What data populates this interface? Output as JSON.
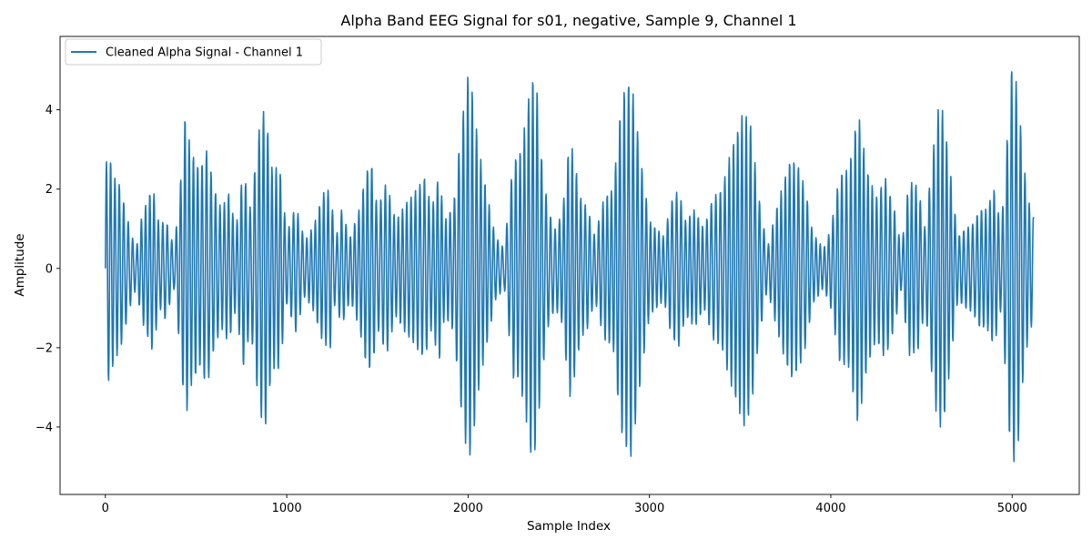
{
  "chart_data": {
    "type": "line",
    "title": "Alpha Band EEG Signal for s01, negative, Sample 9, Channel 1",
    "xlabel": "Sample Index",
    "ylabel": "Amplitude",
    "xlim": [
      -250,
      5370
    ],
    "ylim": [
      -5.7,
      5.85
    ],
    "xticks": [
      0,
      1000,
      2000,
      3000,
      4000,
      5000
    ],
    "xtick_labels": [
      "0",
      "1000",
      "2000",
      "3000",
      "4000",
      "5000"
    ],
    "yticks": [
      -4,
      -2,
      0,
      2,
      4
    ],
    "ytick_labels": [
      "−4",
      "−2",
      "0",
      "2",
      "4"
    ],
    "grid": false,
    "legend_position": "top-left",
    "series": [
      {
        "name": "Cleaned Alpha Signal - Channel 1",
        "color": "#1f77b4",
        "n_samples": 5120,
        "carrier_period_samples": 24,
        "amplitude_envelope": {
          "x": [
            0,
            20,
            50,
            80,
            110,
            140,
            170,
            200,
            260,
            300,
            330,
            380,
            420,
            440,
            470,
            520,
            560,
            600,
            640,
            680,
            720,
            760,
            800,
            850,
            880,
            920,
            960,
            1000,
            1050,
            1100,
            1150,
            1200,
            1240,
            1270,
            1300,
            1350,
            1400,
            1440,
            1470,
            1500,
            1550,
            1600,
            1650,
            1700,
            1760,
            1800,
            1840,
            1870,
            1920,
            1960,
            2000,
            2020,
            2060,
            2100,
            2150,
            2200,
            2250,
            2280,
            2320,
            2350,
            2380,
            2400,
            2440,
            2480,
            2520,
            2560,
            2580,
            2620,
            2660,
            2700,
            2750,
            2800,
            2840,
            2860,
            2900,
            2920,
            2960,
            3000,
            3040,
            3080,
            3120,
            3160,
            3200,
            3250,
            3300,
            3350,
            3400,
            3440,
            3480,
            3520,
            3560,
            3600,
            3650,
            3700,
            3740,
            3780,
            3820,
            3860,
            3900,
            3960,
            4000,
            4050,
            4100,
            4150,
            4200,
            4250,
            4300,
            4350,
            4390,
            4430,
            4480,
            4520,
            4560,
            4590,
            4620,
            4660,
            4700,
            4740,
            4780,
            4820,
            4860,
            4900,
            4940,
            4980,
            4995,
            5030,
            5060,
            5090,
            5119
          ],
          "amplitude": [
            2.6,
            2.9,
            2.3,
            2.1,
            1.5,
            0.9,
            0.5,
            1.3,
            2.1,
            1.0,
            1.3,
            0.5,
            2.5,
            3.9,
            3.0,
            2.5,
            3.0,
            2.0,
            1.5,
            1.9,
            1.0,
            2.5,
            1.5,
            3.6,
            4.1,
            2.5,
            2.6,
            0.9,
            1.6,
            0.7,
            1.1,
            1.9,
            2.0,
            0.7,
            1.5,
            0.8,
            1.5,
            2.5,
            2.6,
            1.5,
            2.2,
            1.2,
            1.6,
            1.9,
            2.3,
            1.5,
            2.4,
            1.2,
            1.6,
            3.5,
            4.9,
            4.6,
            3.0,
            2.0,
            0.8,
            0.5,
            2.8,
            2.8,
            3.8,
            4.9,
            4.5,
            3.0,
            1.5,
            1.0,
            1.4,
            3.3,
            2.9,
            1.8,
            1.5,
            0.8,
            1.8,
            2.0,
            4.0,
            4.5,
            4.8,
            4.0,
            2.5,
            1.2,
            1.0,
            0.8,
            1.7,
            2.0,
            1.2,
            1.5,
            1.0,
            1.8,
            2.0,
            2.8,
            3.4,
            4.0,
            3.6,
            1.9,
            0.5,
            1.5,
            2.2,
            2.8,
            2.6,
            2.0,
            0.9,
            0.5,
            1.0,
            2.4,
            2.5,
            4.0,
            2.5,
            1.8,
            2.3,
            1.5,
            0.5,
            2.2,
            2.1,
            1.0,
            2.8,
            4.0,
            4.0,
            2.4,
            0.8,
            1.0,
            1.1,
            1.5,
            1.5,
            2.0,
            1.0,
            3.8,
            5.1,
            4.6,
            2.8,
            1.7,
            1.3
          ]
        }
      }
    ]
  }
}
